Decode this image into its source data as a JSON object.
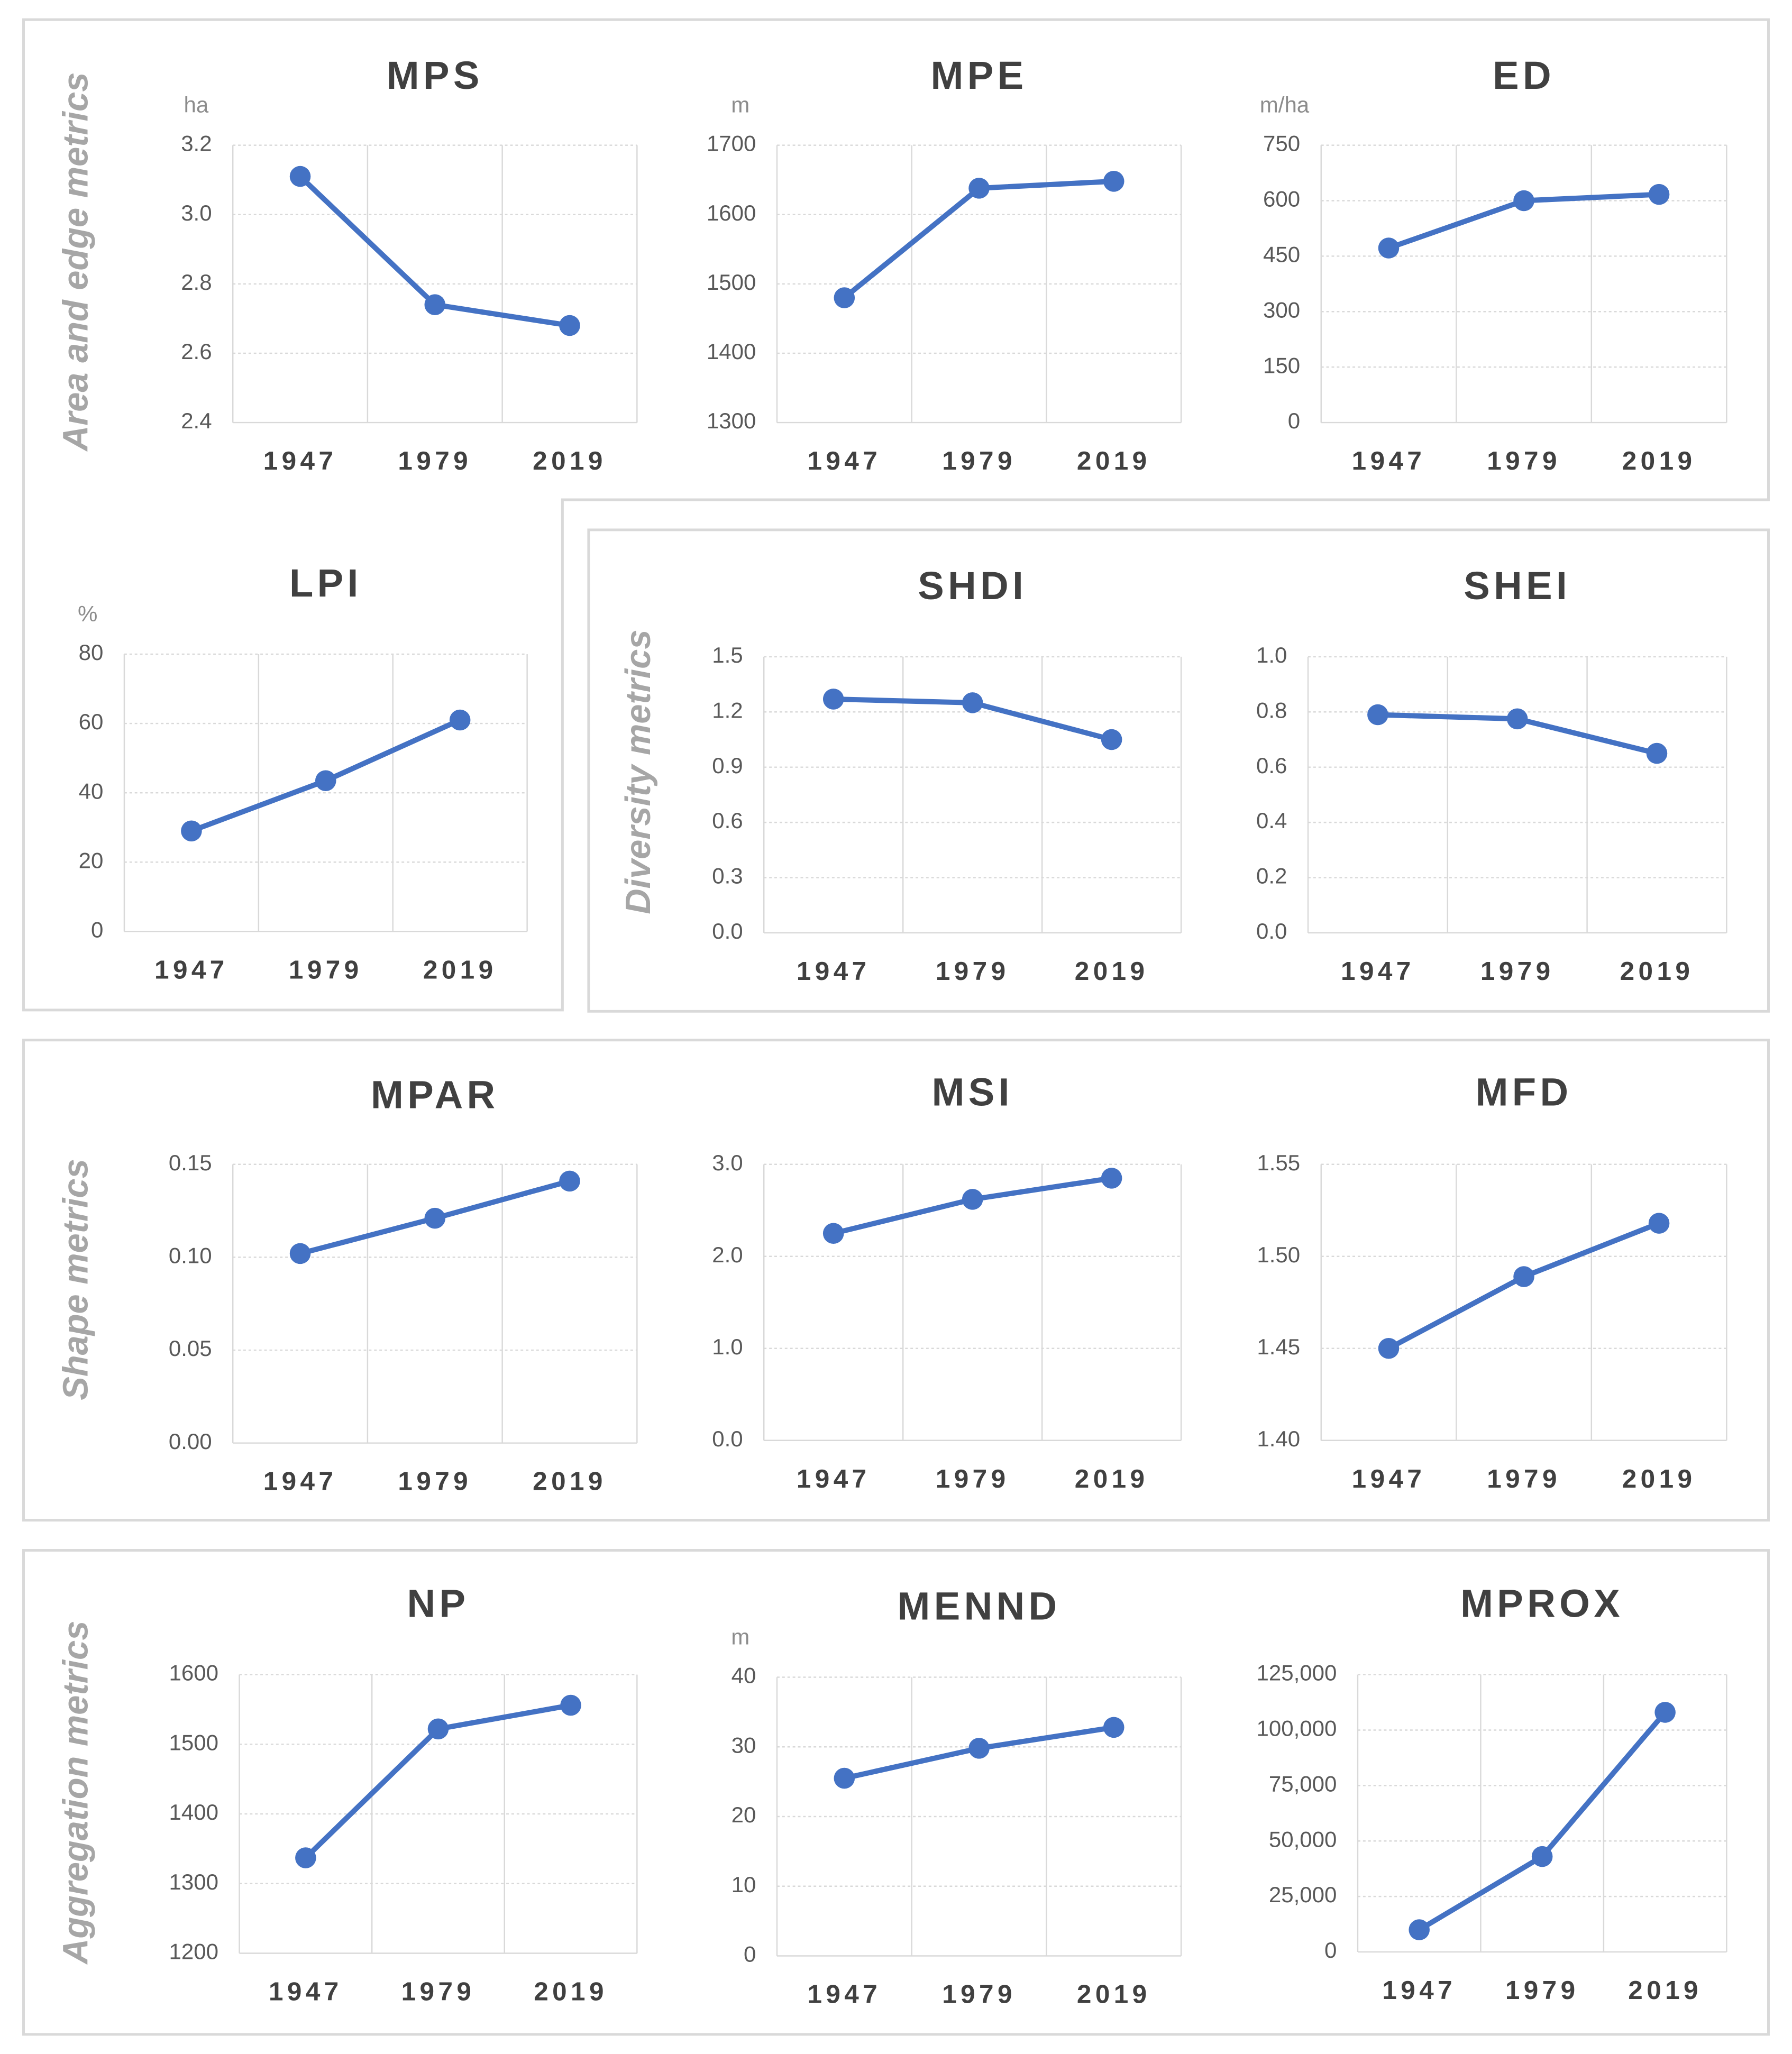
{
  "group_labels": [
    "Area and edge metrics",
    "Diversity metrics",
    "Shape metrics",
    "Aggregation metrics"
  ],
  "chart_data": [
    {
      "type": "line",
      "title": "MPS",
      "y_unit": "ha",
      "categories": [
        "1947",
        "1979",
        "2019"
      ],
      "values": [
        3.11,
        2.74,
        2.68
      ],
      "color": "#4472c4",
      "ylim": [
        2.4,
        3.2
      ],
      "yticks": [
        2.4,
        2.6,
        2.8,
        {
          "value": 3,
          "label": "3.0"
        },
        3.2
      ],
      "grid": true
    },
    {
      "type": "line",
      "title": "MPE",
      "y_unit": "m",
      "categories": [
        "1947",
        "1979",
        "2019"
      ],
      "values": [
        1480,
        1638,
        1648
      ],
      "color": "#4472c4",
      "ylim": [
        1300,
        1700
      ],
      "yticks": [
        1300,
        1400,
        1500,
        1600,
        1700
      ],
      "grid": true
    },
    {
      "type": "line",
      "title": "ED",
      "y_unit": "m/ha",
      "categories": [
        "1947",
        "1979",
        "2019"
      ],
      "values": [
        472,
        600,
        617
      ],
      "color": "#4472c4",
      "ylim": [
        0,
        750
      ],
      "yticks": [
        0,
        150,
        300,
        450,
        600,
        750
      ],
      "grid": true
    },
    {
      "type": "line",
      "title": "LPI",
      "y_unit": "%",
      "categories": [
        "1947",
        "1979",
        "2019"
      ],
      "values": [
        29,
        43.5,
        61
      ],
      "color": "#4472c4",
      "ylim": [
        0,
        80
      ],
      "yticks": [
        0,
        20,
        40,
        60,
        80
      ],
      "grid": true
    },
    {
      "type": "line",
      "title": "SHDI",
      "categories": [
        "1947",
        "1979",
        "2019"
      ],
      "values": [
        1.27,
        1.25,
        1.05
      ],
      "color": "#4472c4",
      "ylim": [
        0,
        1.5
      ],
      "yticks": [
        {
          "value": 0,
          "label": "0.0"
        },
        0.3,
        0.6,
        0.9,
        1.2,
        1.5
      ],
      "grid": true
    },
    {
      "type": "line",
      "title": "SHEI",
      "categories": [
        "1947",
        "1979",
        "2019"
      ],
      "values": [
        0.79,
        0.775,
        0.65
      ],
      "color": "#4472c4",
      "ylim": [
        0,
        1
      ],
      "yticks": [
        {
          "value": 0,
          "label": "0.0"
        },
        0.2,
        0.4,
        0.6,
        0.8,
        {
          "value": 1,
          "label": "1.0"
        }
      ],
      "grid": true
    },
    {
      "type": "line",
      "title": "MPAR",
      "categories": [
        "1947",
        "1979",
        "2019"
      ],
      "values": [
        0.102,
        0.121,
        0.141
      ],
      "color": "#4472c4",
      "ylim": [
        0,
        0.15
      ],
      "yticks": [
        {
          "value": 0,
          "label": "0.00"
        },
        0.05,
        {
          "value": 0.1,
          "label": "0.10"
        },
        0.15
      ],
      "grid": true
    },
    {
      "type": "line",
      "title": "MSI",
      "categories": [
        "1947",
        "1979",
        "2019"
      ],
      "values": [
        2.25,
        2.62,
        2.85
      ],
      "color": "#4472c4",
      "ylim": [
        0,
        3
      ],
      "yticks": [
        {
          "value": 0,
          "label": "0.0"
        },
        {
          "value": 1,
          "label": "1.0"
        },
        {
          "value": 2,
          "label": "2.0"
        },
        {
          "value": 3,
          "label": "3.0"
        }
      ],
      "grid": true
    },
    {
      "type": "line",
      "title": "MFD",
      "categories": [
        "1947",
        "1979",
        "2019"
      ],
      "values": [
        1.45,
        1.489,
        1.518
      ],
      "color": "#4472c4",
      "ylim": [
        1.4,
        1.55
      ],
      "yticks": [
        {
          "value": 1.4,
          "label": "1.40"
        },
        1.45,
        {
          "value": 1.5,
          "label": "1.50"
        },
        1.55
      ],
      "grid": true
    },
    {
      "type": "line",
      "title": "NP",
      "categories": [
        "1947",
        "1979",
        "2019"
      ],
      "values": [
        1337,
        1522,
        1556
      ],
      "color": "#4472c4",
      "ylim": [
        1200,
        1600
      ],
      "yticks": [
        1200,
        1300,
        1400,
        1500,
        1600
      ],
      "grid": true
    },
    {
      "type": "line",
      "title": "MENND",
      "y_unit": "m",
      "categories": [
        "1947",
        "1979",
        "2019"
      ],
      "values": [
        25.5,
        29.8,
        32.8
      ],
      "color": "#4472c4",
      "ylim": [
        0,
        40
      ],
      "yticks": [
        0,
        10,
        20,
        30,
        40
      ],
      "grid": true
    },
    {
      "type": "line",
      "title": "MPROX",
      "categories": [
        "1947",
        "1979",
        "2019"
      ],
      "values": [
        10000,
        43000,
        108000
      ],
      "color": "#4472c4",
      "ylim": [
        0,
        125000
      ],
      "yticks": [
        0,
        {
          "value": 25000,
          "label": "25,000"
        },
        {
          "value": 50000,
          "label": "50,000"
        },
        {
          "value": 75000,
          "label": "75,000"
        },
        {
          "value": 100000,
          "label": "100,000"
        },
        {
          "value": 125000,
          "label": "125,000"
        }
      ],
      "grid": true
    }
  ]
}
